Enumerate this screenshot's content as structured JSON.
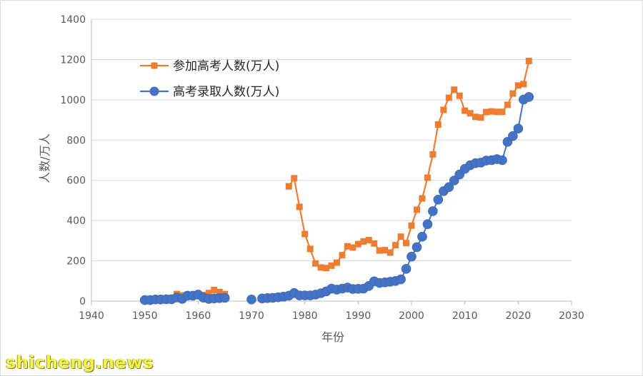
{
  "chart_data": {
    "type": "line",
    "xlabel": "年份",
    "ylabel": "人数/万人",
    "xlim": [
      1940,
      2030
    ],
    "ylim": [
      0,
      1400
    ],
    "xticks": [
      1940,
      1950,
      1960,
      1970,
      1980,
      1990,
      2000,
      2010,
      2020,
      2030
    ],
    "yticks": [
      0,
      200,
      400,
      600,
      800,
      1000,
      1200,
      1400
    ],
    "grid": "horizontal",
    "legend": "top-left",
    "series": [
      {
        "name": "参加高考人数(万人)",
        "color": "#ed7d31",
        "marker": "square",
        "segments": [
          {
            "x": [
              1952,
              1953,
              1954,
              1955,
              1956,
              1957,
              1958,
              1959,
              1960,
              1961,
              1962,
              1963,
              1964,
              1965
            ],
            "y": [
              7,
              10,
              12,
              15,
              35,
              28,
              25,
              30,
              35,
              30,
              40,
              55,
              45,
              35
            ]
          },
          {
            "x": [
              1977,
              1978,
              1979,
              1980,
              1981,
              1982,
              1983,
              1984,
              1985,
              1986,
              1987,
              1988,
              1989,
              1990,
              1991,
              1992,
              1993,
              1994,
              1995,
              1996,
              1997,
              1998,
              1999,
              2000,
              2001,
              2002,
              2003,
              2004,
              2005,
              2006,
              2007,
              2008,
              2009,
              2010,
              2011,
              2012,
              2013,
              2014,
              2015,
              2016,
              2017,
              2018,
              2019,
              2020,
              2021,
              2022
            ],
            "y": [
              570,
              610,
              468,
              333,
              259,
              187,
              167,
              164,
              176,
              191,
              228,
              272,
              266,
              283,
              296,
              303,
              286,
              251,
              253,
              241,
              278,
              320,
              288,
              375,
              454,
              510,
              613,
              729,
              877,
              950,
              1010,
              1050,
              1020,
              946,
              933,
              915,
              912,
              939,
              942,
              940,
              940,
              975,
              1031,
              1071,
              1078,
              1193
            ]
          }
        ]
      },
      {
        "name": "高考录取人数(万人)",
        "color": "#4472c4",
        "marker": "circle",
        "segments": [
          {
            "x": [
              1950,
              1951,
              1952,
              1953,
              1954,
              1955,
              1956,
              1957,
              1958,
              1959,
              1960,
              1961,
              1962,
              1963,
              1964,
              1965
            ],
            "y": [
              5,
              5,
              8,
              8,
              9,
              9,
              18,
              11,
              27,
              27,
              32,
              17,
              11,
              13,
              15,
              16
            ]
          },
          {
            "x": [
              1970
            ],
            "y": [
              8
            ]
          },
          {
            "x": [
              1972,
              1973,
              1974,
              1975,
              1976,
              1977,
              1978,
              1979,
              1980,
              1981,
              1982,
              1983,
              1984,
              1985,
              1986,
              1987,
              1988,
              1989,
              1990,
              1991,
              1992,
              1993,
              1994,
              1995,
              1996,
              1997,
              1998,
              1999,
              2000,
              2001,
              2002,
              2003,
              2004,
              2005,
              2006,
              2007,
              2008,
              2009,
              2010,
              2011,
              2012,
              2013,
              2014,
              2015,
              2016,
              2017,
              2018,
              2019,
              2020,
              2021,
              2022
            ],
            "y": [
              13,
              15,
              16,
              19,
              22,
              27,
              40,
              28,
              28,
              28,
              32,
              39,
              48,
              62,
              57,
              62,
              67,
              60,
              61,
              62,
              75,
              98,
              90,
              93,
              96,
              100,
              108,
              160,
              221,
              268,
              320,
              382,
              447,
              504,
              546,
              566,
              599,
              629,
              657,
              675,
              685,
              688,
              698,
              700,
              705,
              700,
              791,
              820,
              857,
              1001,
              1014
            ]
          }
        ]
      }
    ]
  },
  "watermark": "shicheng.news"
}
